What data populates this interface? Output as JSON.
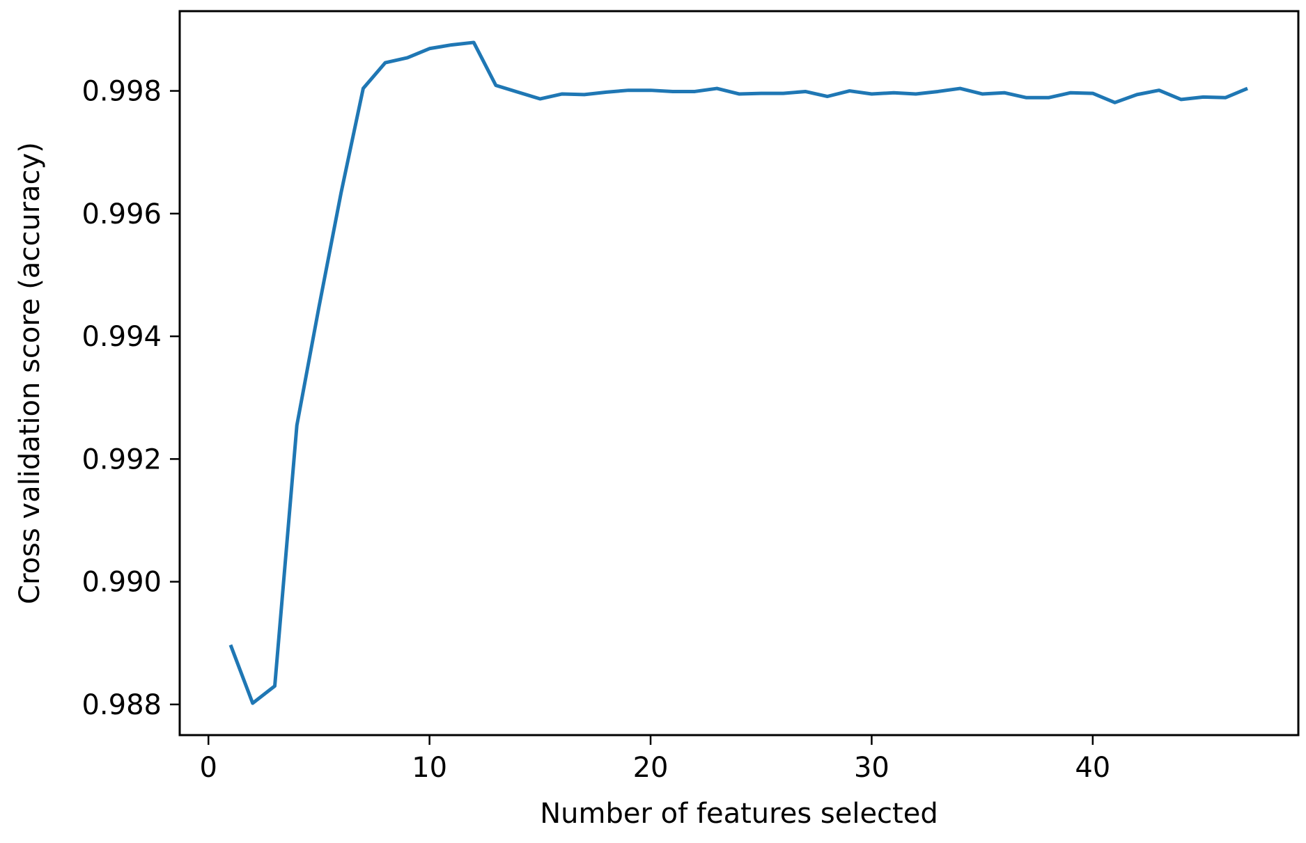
{
  "chart_data": {
    "type": "line",
    "title": "",
    "xlabel": "Number of features selected",
    "ylabel": "Cross validation score (accuracy)",
    "xlim": [
      -1.3,
      49.3
    ],
    "ylim": [
      0.9875,
      0.9993
    ],
    "xticks": [
      0,
      10,
      20,
      30,
      40
    ],
    "xtick_labels": [
      "0",
      "10",
      "20",
      "30",
      "40"
    ],
    "yticks": [
      0.988,
      0.99,
      0.992,
      0.994,
      0.996,
      0.998
    ],
    "ytick_labels": [
      "0.988",
      "0.990",
      "0.992",
      "0.994",
      "0.996",
      "0.998"
    ],
    "grid": false,
    "legend": "none",
    "series": [
      {
        "color": "#1f77b4",
        "x": [
          1,
          2,
          3,
          4,
          5,
          6,
          7,
          8,
          9,
          10,
          11,
          12,
          13,
          14,
          15,
          16,
          17,
          18,
          19,
          20,
          21,
          22,
          23,
          24,
          25,
          26,
          27,
          28,
          29,
          30,
          31,
          32,
          33,
          34,
          35,
          36,
          37,
          38,
          39,
          40,
          41,
          42,
          43,
          44,
          45,
          46,
          47
        ],
        "y": [
          0.98897,
          0.98802,
          0.9883,
          0.99255,
          0.99448,
          0.99634,
          0.99804,
          0.99846,
          0.99854,
          0.99869,
          0.99875,
          0.99879,
          0.99809,
          0.99798,
          0.99787,
          0.99795,
          0.99794,
          0.99798,
          0.99801,
          0.99801,
          0.99799,
          0.99799,
          0.99804,
          0.99795,
          0.99796,
          0.99796,
          0.99799,
          0.99791,
          0.998,
          0.99795,
          0.99797,
          0.99795,
          0.99799,
          0.99804,
          0.99795,
          0.99797,
          0.99789,
          0.99789,
          0.99797,
          0.99796,
          0.99781,
          0.99794,
          0.99801,
          0.99786,
          0.9979,
          0.99789,
          0.99804
        ]
      }
    ]
  }
}
